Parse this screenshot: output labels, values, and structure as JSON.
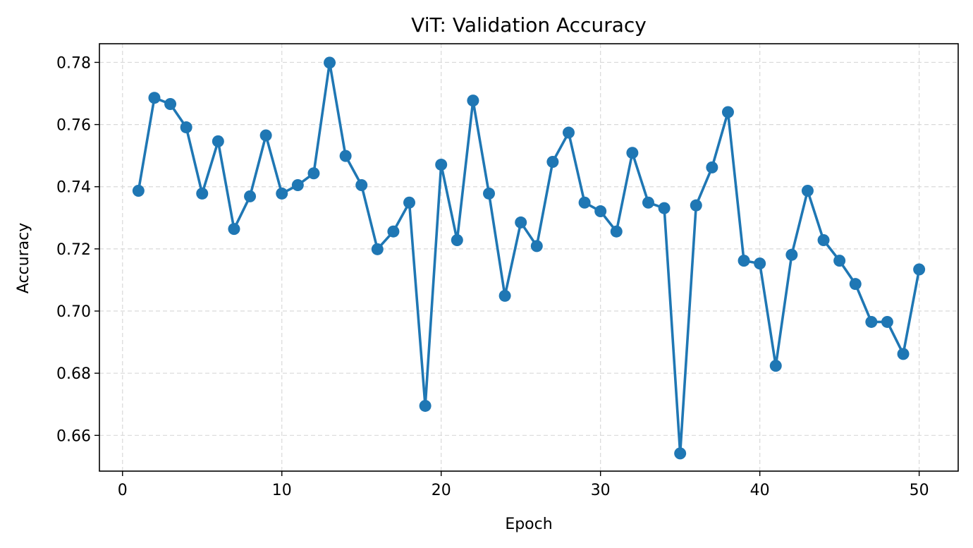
{
  "chart_data": {
    "type": "line",
    "title": "ViT: Validation Accuracy",
    "xlabel": "Epoch",
    "ylabel": "Accuracy",
    "xlim": [
      -1.45,
      52.45
    ],
    "ylim": [
      0.6485,
      0.786
    ],
    "xticks": [
      0,
      10,
      20,
      30,
      40,
      50
    ],
    "yticks": [
      0.66,
      0.68,
      0.7,
      0.72,
      0.74,
      0.76,
      0.78
    ],
    "xtick_labels": [
      "0",
      "10",
      "20",
      "30",
      "40",
      "50"
    ],
    "ytick_labels": [
      "0.66",
      "0.68",
      "0.70",
      "0.72",
      "0.74",
      "0.76",
      "0.78"
    ],
    "grid": true,
    "color": "#1f77b4",
    "x": [
      1,
      2,
      3,
      4,
      5,
      6,
      7,
      8,
      9,
      10,
      11,
      12,
      13,
      14,
      15,
      16,
      17,
      18,
      19,
      20,
      21,
      22,
      23,
      24,
      25,
      26,
      27,
      28,
      29,
      30,
      31,
      32,
      33,
      34,
      35,
      36,
      37,
      38,
      39,
      40,
      41,
      42,
      43,
      44,
      45,
      46,
      47,
      48,
      49,
      50
    ],
    "y": [
      0.7387,
      0.7686,
      0.7666,
      0.7591,
      0.7378,
      0.7546,
      0.7264,
      0.7369,
      0.7565,
      0.7378,
      0.7405,
      0.7443,
      0.7799,
      0.7499,
      0.7405,
      0.7199,
      0.7256,
      0.7349,
      0.6695,
      0.7471,
      0.7228,
      0.7677,
      0.7378,
      0.7049,
      0.7285,
      0.7209,
      0.748,
      0.7574,
      0.7349,
      0.7321,
      0.7256,
      0.7509,
      0.7349,
      0.7331,
      0.6542,
      0.734,
      0.7462,
      0.764,
      0.7162,
      0.7153,
      0.6824,
      0.7181,
      0.7387,
      0.7228,
      0.7162,
      0.7087,
      0.6965,
      0.6965,
      0.6862,
      0.7134
    ]
  }
}
